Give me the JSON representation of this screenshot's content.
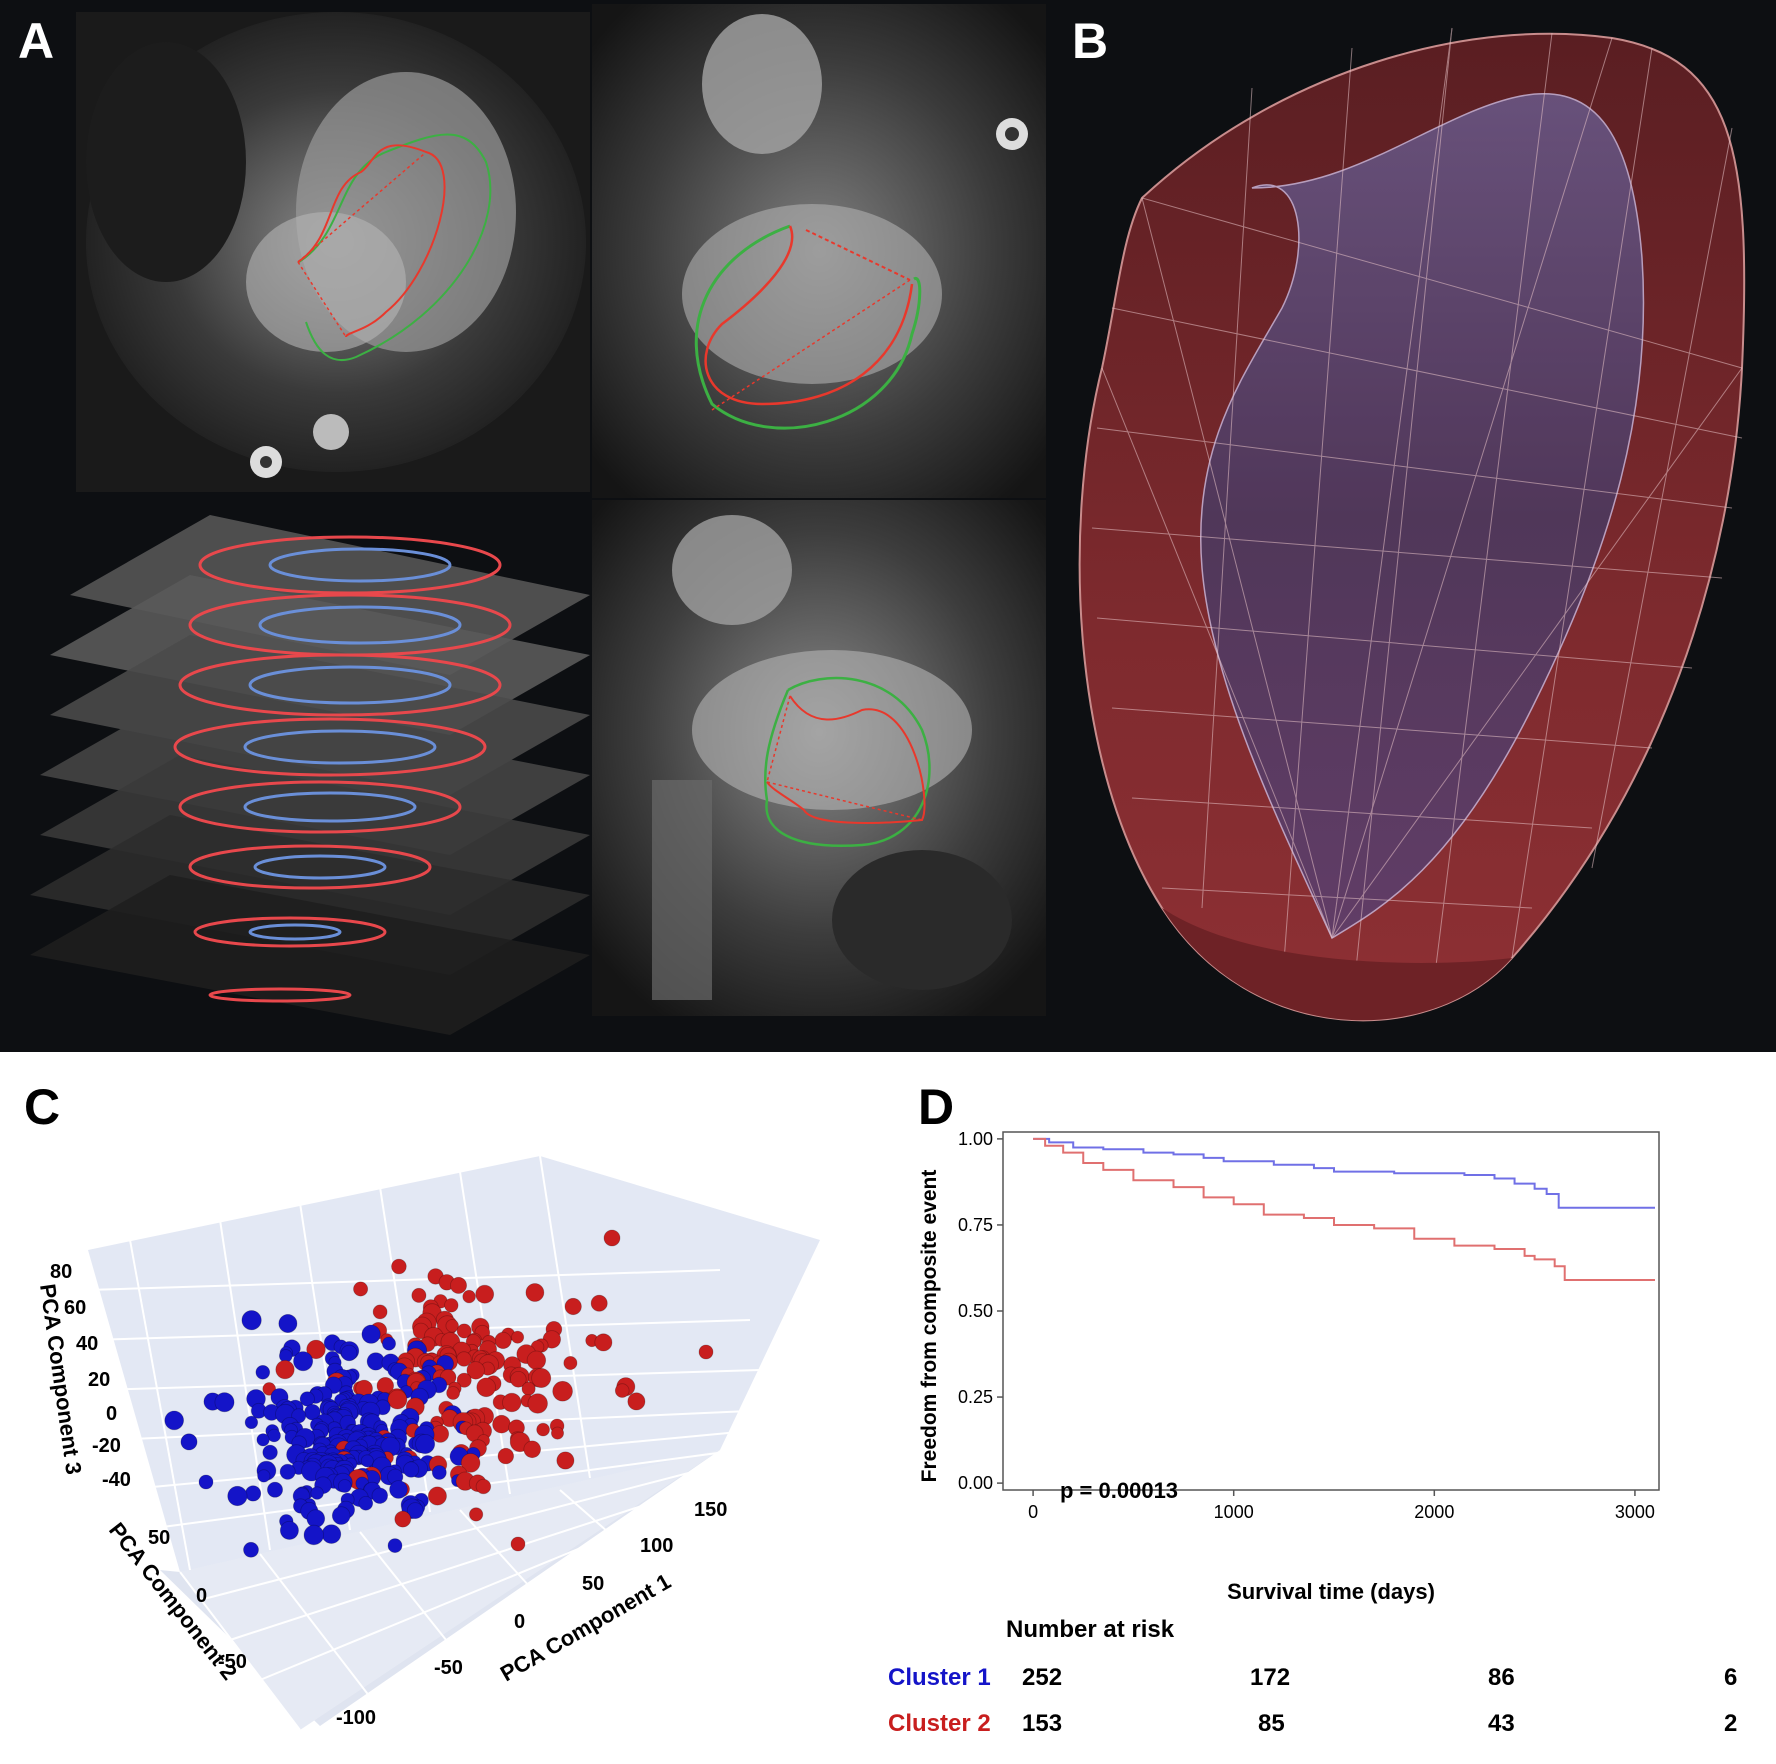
{
  "panels": {
    "a": "A",
    "b": "B",
    "c": "C",
    "d": "D"
  },
  "colors": {
    "cluster1": "#1414c8",
    "cluster2": "#c81e1e",
    "curve1": "#7070e6",
    "curve2": "#e07070",
    "dark_bg": "#0d0f12",
    "mesh": "#8b2a2e"
  },
  "icons": [
    "mri-4ch-view",
    "mri-3ch-view",
    "mri-2ch-view",
    "short-axis-stack",
    "ventricle-mesh"
  ],
  "chart_data": [
    {
      "type": "scatter",
      "projection": "3d",
      "title": "",
      "xlabel": "PCA Component 1",
      "ylabel": "PCA Component 2",
      "zlabel": "PCA Component 3",
      "x_ticks": [
        "-100",
        "-50",
        "0",
        "50",
        "100",
        "150"
      ],
      "y_ticks": [
        "-50",
        "0",
        "50"
      ],
      "z_ticks": [
        "80",
        "60",
        "40",
        "20",
        "0",
        "-20",
        "-40"
      ],
      "series": [
        {
          "name": "Cluster 1",
          "color": "#1414c8",
          "count": 252
        },
        {
          "name": "Cluster 2",
          "color": "#c81e1e",
          "count": 153
        }
      ]
    },
    {
      "type": "line",
      "title": "",
      "xlabel": "Survival time (days)",
      "ylabel": "Freedom from composite event",
      "x_ticks": [
        "0",
        "1000",
        "2000",
        "3000"
      ],
      "y_ticks": [
        "1.00",
        "0.75",
        "0.50",
        "0.25",
        "0.00"
      ],
      "xlim": [
        -150,
        3120
      ],
      "ylim": [
        -0.02,
        1.02
      ],
      "annotation": "p = 0.00013",
      "series": [
        {
          "name": "Cluster 1",
          "color": "#7070e6",
          "x": [
            0,
            80,
            200,
            350,
            550,
            700,
            850,
            950,
            1200,
            1400,
            1500,
            1800,
            2000,
            2150,
            2300,
            2400,
            2500,
            2560,
            2620,
            3100
          ],
          "y": [
            1.0,
            0.99,
            0.975,
            0.97,
            0.96,
            0.955,
            0.945,
            0.935,
            0.925,
            0.915,
            0.905,
            0.9,
            0.9,
            0.895,
            0.885,
            0.87,
            0.855,
            0.84,
            0.8,
            0.8
          ]
        },
        {
          "name": "Cluster 2",
          "color": "#e07070",
          "x": [
            0,
            60,
            150,
            250,
            350,
            500,
            700,
            850,
            1000,
            1150,
            1350,
            1500,
            1700,
            1900,
            2100,
            2300,
            2450,
            2500,
            2600,
            2650,
            3100
          ],
          "y": [
            1.0,
            0.98,
            0.96,
            0.93,
            0.91,
            0.88,
            0.86,
            0.83,
            0.81,
            0.78,
            0.77,
            0.75,
            0.74,
            0.71,
            0.69,
            0.68,
            0.66,
            0.65,
            0.63,
            0.59,
            0.59
          ]
        }
      ]
    }
  ],
  "risk_table": {
    "title": "Number at risk",
    "rows": [
      {
        "label": "Cluster 1",
        "values": [
          "252",
          "172",
          "86",
          "6"
        ]
      },
      {
        "label": "Cluster 2",
        "values": [
          "153",
          "85",
          "43",
          "2"
        ]
      }
    ]
  }
}
